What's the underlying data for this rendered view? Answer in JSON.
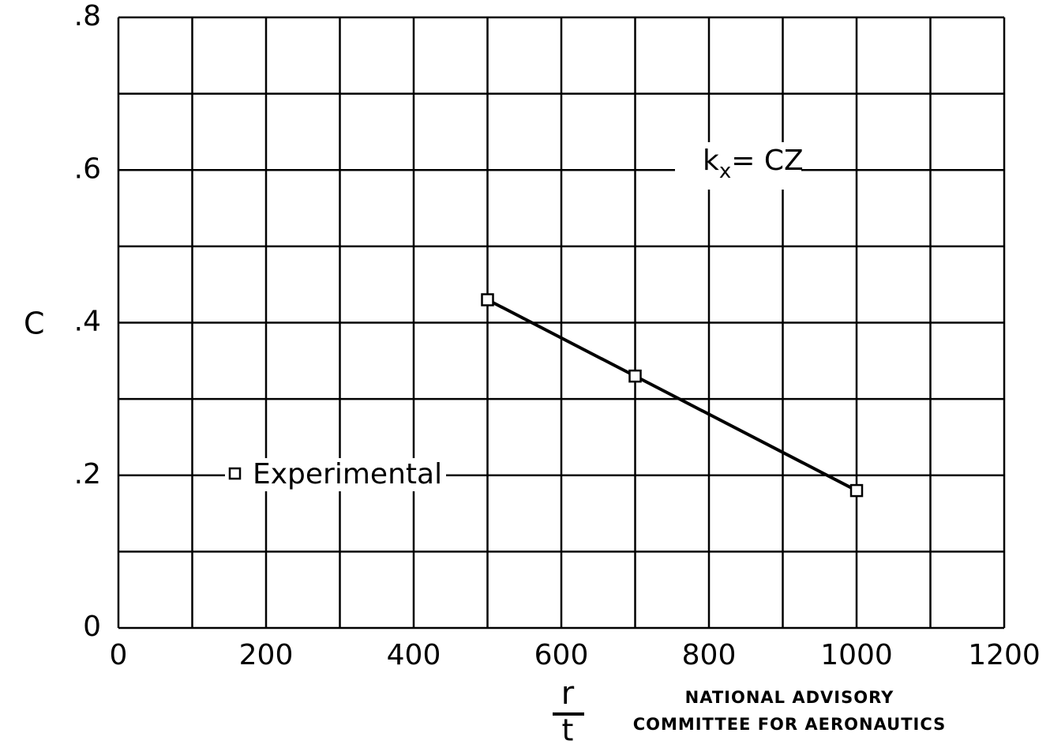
{
  "chart_data": {
    "type": "line",
    "ylabel": "C",
    "xlabel_numerator": "r",
    "xlabel_denominator": "t",
    "x": [
      500,
      700,
      1000
    ],
    "series": [
      {
        "name": "Experimental",
        "color": "#000000",
        "marker": "square",
        "values": [
          0.43,
          0.33,
          0.18
        ]
      }
    ],
    "xlim": [
      0,
      1200
    ],
    "ylim": [
      0,
      0.8
    ],
    "xticks": [
      0,
      200,
      400,
      600,
      800,
      1000,
      1200
    ],
    "x_minor_ticks": [
      100,
      300,
      500,
      700,
      900,
      1100
    ],
    "yticks": [
      0,
      {
        "value": 0.2,
        "label": ".2"
      },
      {
        "value": 0.4,
        "label": ".4"
      },
      {
        "value": 0.6,
        "label": ".6"
      },
      {
        "value": 0.8,
        "label": ".8"
      }
    ],
    "y_minor_ticks": [
      0.1,
      0.3,
      0.5,
      0.7
    ],
    "grid": true,
    "annotation": {
      "base": "k",
      "subscript": "x",
      "rest": "= CZ"
    },
    "credit": [
      "NATIONAL ADVISORY",
      "COMMITTEE FOR AERONAUTICS"
    ]
  }
}
